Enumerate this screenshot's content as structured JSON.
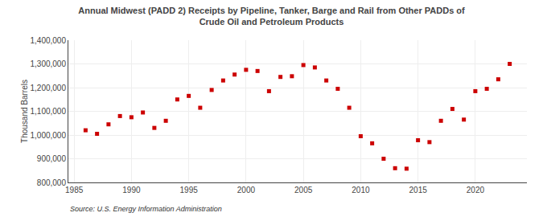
{
  "chart_data": {
    "type": "scatter",
    "title": "Annual Midwest (PADD 2) Receipts by Pipeline, Tanker, Barge and Rail from Other PADDs of\nCrude Oil and Petroleum Products",
    "ylabel": "Thousand Barrels",
    "annotations": [
      "Source: U.S. Energy Information Administration"
    ],
    "x": [
      1986,
      1987,
      1988,
      1989,
      1990,
      1991,
      1992,
      1993,
      1994,
      1995,
      1996,
      1997,
      1998,
      1999,
      2000,
      2001,
      2002,
      2003,
      2004,
      2005,
      2006,
      2007,
      2008,
      2009,
      2010,
      2011,
      2012,
      2013,
      2014,
      2015,
      2016,
      2017,
      2018,
      2019,
      2020,
      2021,
      2022,
      2023
    ],
    "values": [
      1020000,
      1005000,
      1045000,
      1080000,
      1075000,
      1095000,
      1030000,
      1060000,
      1150000,
      1165000,
      1115000,
      1190000,
      1230000,
      1255000,
      1275000,
      1270000,
      1185000,
      1245000,
      1248000,
      1295000,
      1285000,
      1230000,
      1195000,
      1115000,
      995000,
      965000,
      900000,
      860000,
      858000,
      978000,
      970000,
      1060000,
      1110000,
      1065000,
      1185000,
      1195000,
      1235000,
      1300000
    ],
    "color": "#cc0000",
    "marker": "square",
    "xlim": [
      1984.5,
      2024.5
    ],
    "xticks": [
      1985,
      1990,
      1995,
      2000,
      2005,
      2010,
      2015,
      2020
    ],
    "ylim": [
      800000,
      1400000
    ],
    "yticks": [
      {
        "value": 800000,
        "label": "800,000"
      },
      {
        "value": 900000,
        "label": "900,000"
      },
      {
        "value": 1000000,
        "label": "1,000,000"
      },
      {
        "value": 1100000,
        "label": "1,100,000"
      },
      {
        "value": 1200000,
        "label": "1,200,000"
      },
      {
        "value": 1300000,
        "label": "1,300,000"
      },
      {
        "value": 1400000,
        "label": "1,400,000"
      }
    ],
    "grid": true
  }
}
